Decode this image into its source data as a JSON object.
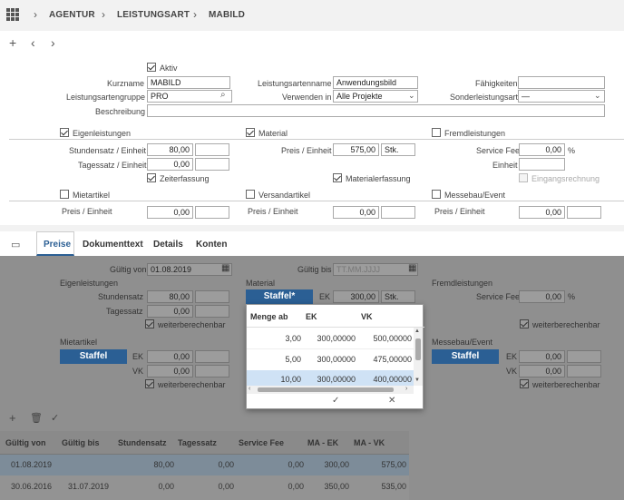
{
  "breadcrumb": [
    "AGENTUR",
    "LEISTUNGSART",
    "MABILD"
  ],
  "toolbar": {
    "add": "+",
    "back": "‹",
    "forward": "›"
  },
  "form": {
    "aktiv_label": "Aktiv",
    "kurzname_label": "Kurzname",
    "kurzname": "MABILD",
    "leistungsartenname_label": "Leistungsartenname",
    "leistungsartenname": "Anwendungsbild",
    "faehigkeiten_label": "Fähigkeiten",
    "faehigkeiten": "",
    "gruppe_label": "Leistungsartengruppe",
    "gruppe": "PRO",
    "verwenden_label": "Verwenden in",
    "verwenden": "Alle Projekte",
    "sonder_label": "Sonderleistungsart",
    "sonder": "—",
    "beschreibung_label": "Beschreibung",
    "beschreibung": ""
  },
  "sections": {
    "eigen": "Eigenleistungen",
    "material": "Material",
    "fremd": "Fremdleistungen",
    "stundensatz_label": "Stundensatz / Einheit",
    "stundensatz": "80,00",
    "tagessatz_label": "Tagessatz / Einheit",
    "tagessatz": "0,00",
    "zeiterfassung": "Zeiterfassung",
    "preis_label": "Preis / Einheit",
    "material_preis": "575,00",
    "material_unit": "Stk.",
    "materialerfassung": "Materialerfassung",
    "servicefee_label": "Service Fee",
    "servicefee": "0,00",
    "percent": "%",
    "einheit_label": "Einheit",
    "eingangsrechnung": "Eingangsrechnung",
    "miet": "Mietartikel",
    "versand": "Versandartikel",
    "messe": "Messebau/Event",
    "miet_preis": "0,00",
    "versand_preis": "0,00",
    "messe_preis": "0,00"
  },
  "tabs": [
    "Preise",
    "Dokumenttext",
    "Details",
    "Konten"
  ],
  "preise": {
    "gueltig_von_label": "Gültig von",
    "gueltig_von": "01.08.2019",
    "gueltig_bis_label": "Gültig bis",
    "gueltig_bis_placeholder": "TT.MM.JJJJ",
    "eigen": "Eigenleistungen",
    "material": "Material",
    "fremd": "Fremdleistungen",
    "stundensatz_label": "Stundensatz",
    "stundensatz": "80,00",
    "tagessatz_label": "Tagessatz",
    "tagessatz": "0,00",
    "weiter": "weiterberechenbar",
    "staffel_star": "Staffel*",
    "ek_label": "EK",
    "ek": "300,00",
    "ek_unit": "Stk.",
    "servicefee_label": "Service Fee",
    "servicefee": "0,00",
    "percent": "%",
    "miet": "Mietartikel",
    "messe": "Messebau/Event",
    "staffel": "Staffel",
    "vk_label": "VK",
    "miet_ek": "0,00",
    "miet_vk": "0,00",
    "messe_ek": "0,00",
    "messe_vk": "0,00"
  },
  "popup": {
    "headers": [
      "Menge ab",
      "EK",
      "VK"
    ],
    "rows": [
      [
        "3,00",
        "300,00000",
        "500,00000"
      ],
      [
        "5,00",
        "300,00000",
        "475,00000"
      ],
      [
        "10,00",
        "300,00000",
        "400,00000"
      ]
    ],
    "ok": "✓",
    "cancel": "✕"
  },
  "table": {
    "headers": [
      "Gültig von",
      "Gültig bis",
      "Stundensatz",
      "Tagessatz",
      "Service Fee",
      "MA - EK",
      "MA - VK"
    ],
    "rows": [
      [
        "01.08.2019",
        "",
        "80,00",
        "0,00",
        "0,00",
        "300,00",
        "575,00"
      ],
      [
        "30.06.2016",
        "31.07.2019",
        "0,00",
        "0,00",
        "0,00",
        "350,00",
        "535,00"
      ]
    ]
  }
}
